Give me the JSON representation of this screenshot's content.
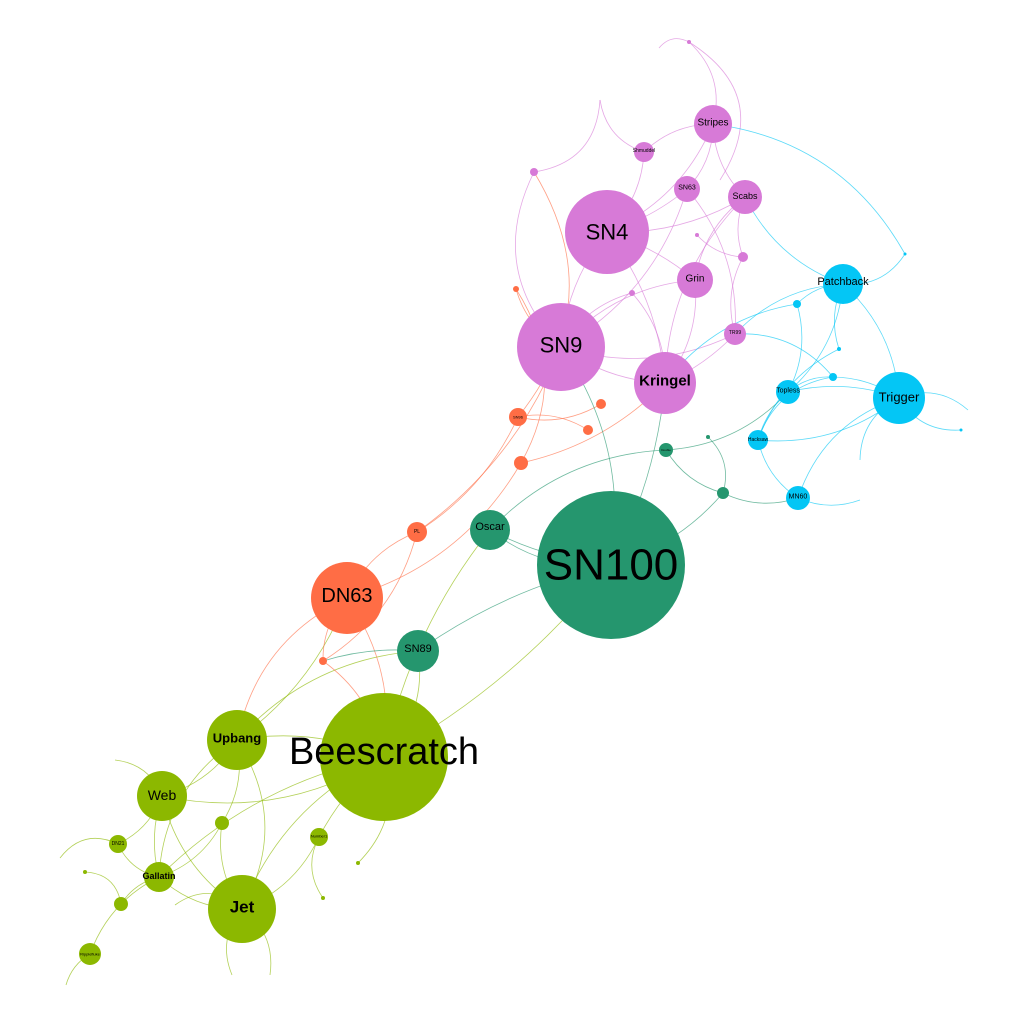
{
  "colors": {
    "green": "#8cb800",
    "teal": "#25966e",
    "orange": "#ff6d45",
    "purple": "#d77ad7",
    "cyan": "#04c6f5"
  },
  "nodes": [
    {
      "id": "sn100",
      "label": "SN100",
      "group": "teal"
    },
    {
      "id": "beescratch",
      "label": "Beescratch",
      "group": "green"
    },
    {
      "id": "sn4",
      "label": "SN4",
      "group": "purple"
    },
    {
      "id": "sn9",
      "label": "SN9",
      "group": "purple"
    },
    {
      "id": "dn63",
      "label": "DN63",
      "group": "orange"
    },
    {
      "id": "kringel",
      "label": "Kringel",
      "group": "purple"
    },
    {
      "id": "jet",
      "label": "Jet",
      "group": "green"
    },
    {
      "id": "upbang",
      "label": "Upbang",
      "group": "green"
    },
    {
      "id": "web",
      "label": "Web",
      "group": "green"
    },
    {
      "id": "trigger",
      "label": "Trigger",
      "group": "cyan"
    },
    {
      "id": "sn89",
      "label": "SN89",
      "group": "teal"
    },
    {
      "id": "oscar",
      "label": "Oscar",
      "group": "teal"
    },
    {
      "id": "stripes",
      "label": "Stripes",
      "group": "purple"
    },
    {
      "id": "grin",
      "label": "Grin",
      "group": "purple"
    },
    {
      "id": "scabs",
      "label": "Scabs",
      "group": "purple"
    },
    {
      "id": "patchback",
      "label": "Patchback",
      "group": "cyan"
    },
    {
      "id": "gallatin",
      "label": "Gallatin",
      "group": "green"
    },
    {
      "id": "sn63",
      "label": "SN63",
      "group": "purple"
    },
    {
      "id": "topless",
      "label": "Topless",
      "group": "cyan"
    },
    {
      "id": "mn60",
      "label": "MN60",
      "group": "cyan"
    },
    {
      "id": "hacksaw",
      "label": "Hacksaw",
      "group": "cyan"
    },
    {
      "id": "tr99",
      "label": "TR99",
      "group": "purple"
    },
    {
      "id": "shmuddel",
      "label": "Shmuddel",
      "group": "purple"
    },
    {
      "id": "numbers",
      "label": "Number1",
      "group": "green"
    },
    {
      "id": "pl",
      "label": "PL",
      "group": "orange"
    },
    {
      "id": "sn96",
      "label": "SN96",
      "group": "orange"
    },
    {
      "id": "dn21",
      "label": "DN21",
      "group": "green"
    },
    {
      "id": "ripplefluke",
      "label": "Ripplefluke",
      "group": "green"
    },
    {
      "id": "double",
      "label": "Double",
      "group": "teal"
    }
  ]
}
